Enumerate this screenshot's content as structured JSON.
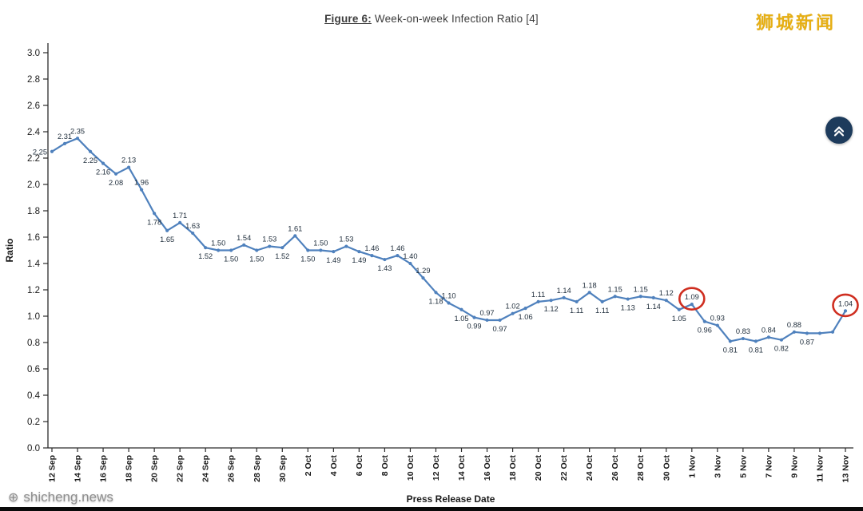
{
  "title": {
    "prefix": "Figure 6:",
    "rest": " Week-on-week Infection Ratio [4]"
  },
  "watermarks": {
    "top_right": "狮城新闻",
    "bottom_left": "shicheng.news"
  },
  "colors": {
    "line": "#4f81bd",
    "point_label": "#22303e",
    "axis": "#2b2b2b",
    "tick_label": "#1a1a1a",
    "annotation": "#cf2e20",
    "title_text": "#3d3d3d",
    "watermark_gold": "#e7af13",
    "watermark_gray": "#8f8f8f",
    "button_bg": "#1d3b5c"
  },
  "chart_data": {
    "type": "line",
    "title": "Figure 6: Week-on-week Infection Ratio [4]",
    "xlabel": "Press Release Date",
    "ylabel": "Ratio",
    "ylim": [
      0.0,
      3.0
    ],
    "ytick_step": 0.2,
    "xtick_every": 2,
    "grid": false,
    "legend": "none",
    "x": [
      "12 Sep",
      "13 Sep",
      "14 Sep",
      "15 Sep",
      "16 Sep",
      "17 Sep",
      "18 Sep",
      "19 Sep",
      "20 Sep",
      "21 Sep",
      "22 Sep",
      "23 Sep",
      "24 Sep",
      "25 Sep",
      "26 Sep",
      "27 Sep",
      "28 Sep",
      "29 Sep",
      "30 Sep",
      "1 Oct",
      "2 Oct",
      "3 Oct",
      "4 Oct",
      "5 Oct",
      "6 Oct",
      "7 Oct",
      "8 Oct",
      "9 Oct",
      "10 Oct",
      "11 Oct",
      "12 Oct",
      "13 Oct",
      "14 Oct",
      "15 Oct",
      "16 Oct",
      "17 Oct",
      "18 Oct",
      "19 Oct",
      "20 Oct",
      "21 Oct",
      "22 Oct",
      "23 Oct",
      "24 Oct",
      "25 Oct",
      "26 Oct",
      "27 Oct",
      "28 Oct",
      "29 Oct",
      "30 Oct",
      "31 Oct",
      "1 Nov",
      "2 Nov",
      "3 Nov",
      "4 Nov",
      "5 Nov",
      "6 Nov",
      "7 Nov",
      "8 Nov",
      "9 Nov",
      "10 Nov",
      "11 Nov",
      "12 Nov",
      "13 Nov"
    ],
    "values": [
      2.25,
      2.31,
      2.35,
      2.25,
      2.16,
      2.08,
      2.13,
      1.96,
      1.78,
      1.65,
      1.71,
      1.63,
      1.52,
      1.5,
      1.5,
      1.54,
      1.5,
      1.53,
      1.52,
      1.61,
      1.5,
      1.5,
      1.49,
      1.53,
      1.49,
      1.46,
      1.43,
      1.46,
      1.4,
      1.29,
      1.18,
      1.1,
      1.05,
      0.99,
      0.97,
      0.97,
      1.02,
      1.06,
      1.11,
      1.12,
      1.14,
      1.11,
      1.18,
      1.11,
      1.15,
      1.13,
      1.15,
      1.14,
      1.12,
      1.05,
      1.09,
      0.96,
      0.93,
      0.81,
      0.83,
      0.81,
      0.84,
      0.82,
      0.88,
      0.87,
      0.87,
      0.88,
      1.04
    ],
    "label_side": [
      "left",
      "above",
      "above",
      "below",
      "below",
      "below",
      "above",
      "above",
      "below",
      "below",
      "above",
      "above",
      "below",
      "above",
      "below",
      "above",
      "below",
      "above",
      "below",
      "above",
      "below",
      "above",
      "below",
      "above",
      "below",
      "above",
      "below",
      "above",
      "above",
      "above",
      "below",
      "above",
      "below",
      "below",
      "above",
      "below",
      "above",
      "below",
      "above",
      "below",
      "above",
      "below",
      "above",
      "below",
      "above",
      "below",
      "above",
      "below",
      "above",
      "below",
      "above",
      "below",
      "above",
      "below",
      "above",
      "below",
      "above",
      "below",
      "above",
      "below",
      "none",
      "none",
      "above"
    ],
    "annotated_indices": [
      50,
      62
    ]
  }
}
